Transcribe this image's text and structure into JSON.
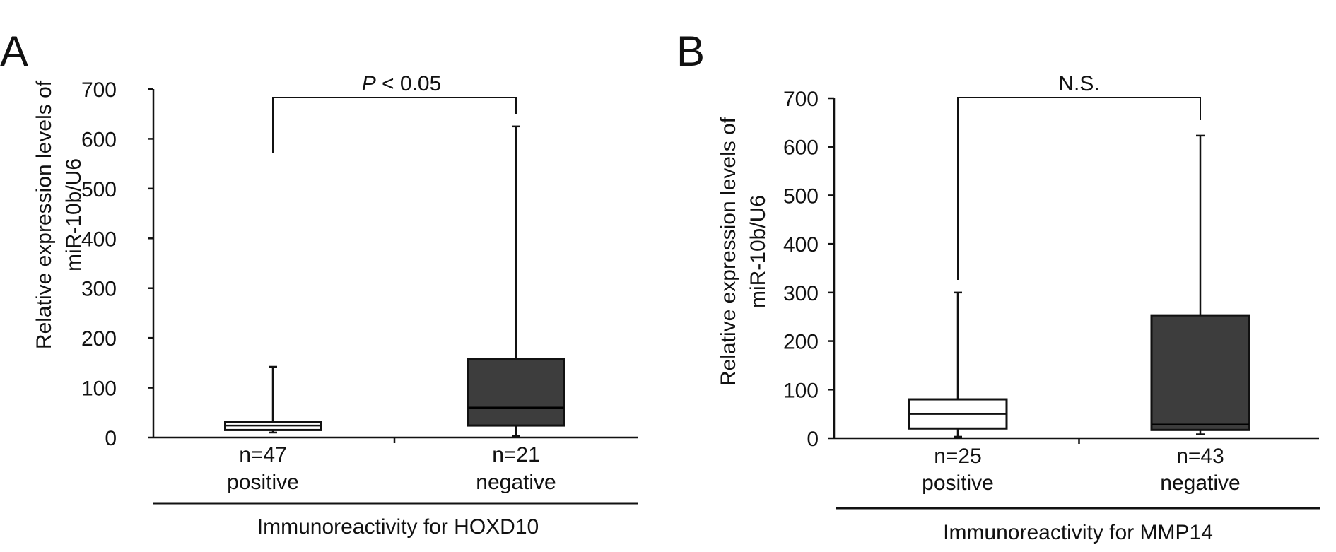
{
  "colors": {
    "ink": "#111111",
    "positive_fill": "#ffffff",
    "negative_fill": "#3d3d3d",
    "median_on_dark": "#000000"
  },
  "panels": [
    {
      "letter": "A",
      "ylabel_line1": "Relative expression levels of",
      "ylabel_line2": "miR-10b/U6",
      "yticks": [
        "0",
        "100",
        "200",
        "300",
        "400",
        "500",
        "600",
        "700"
      ],
      "significance": {
        "italic": "P",
        "rest": " < 0.05"
      },
      "group_title": "Immunoreactivity for HOXD10"
    },
    {
      "letter": "B",
      "ylabel_line1": "Relative expression levels of",
      "ylabel_line2": "miR-10b/U6",
      "yticks": [
        "0",
        "100",
        "200",
        "300",
        "400",
        "500",
        "600",
        "700"
      ],
      "significance": {
        "italic": "",
        "rest": "N.S."
      },
      "group_title": "Immunoreactivity for MMP14"
    }
  ],
  "chart_data": [
    {
      "type": "box",
      "ylim": [
        0,
        700
      ],
      "ylabel": "Relative expression levels of miR-10b/U6",
      "xlabel": "Immunoreactivity for HOXD10",
      "annotation": "P < 0.05",
      "boxes": [
        {
          "count": "n=47",
          "category": "positive",
          "min": 10,
          "q1": 15,
          "median": 24,
          "q3": 31,
          "max": 142,
          "fill": "#ffffff"
        },
        {
          "count": "n=21",
          "category": "negative",
          "min": 3,
          "q1": 24,
          "median": 60,
          "q3": 157,
          "max": 625,
          "fill": "#3d3d3d"
        }
      ]
    },
    {
      "type": "box",
      "ylim": [
        0,
        700
      ],
      "ylabel": "Relative expression levels of miR-10b/U6",
      "xlabel": "Immunoreactivity for MMP14",
      "annotation": "N.S.",
      "boxes": [
        {
          "count": "n=25",
          "category": "positive",
          "min": 3,
          "q1": 20,
          "median": 50,
          "q3": 80,
          "max": 300,
          "fill": "#ffffff"
        },
        {
          "count": "n=43",
          "category": "negative",
          "min": 8,
          "q1": 17,
          "median": 28,
          "q3": 253,
          "max": 623,
          "fill": "#3d3d3d"
        }
      ]
    }
  ]
}
